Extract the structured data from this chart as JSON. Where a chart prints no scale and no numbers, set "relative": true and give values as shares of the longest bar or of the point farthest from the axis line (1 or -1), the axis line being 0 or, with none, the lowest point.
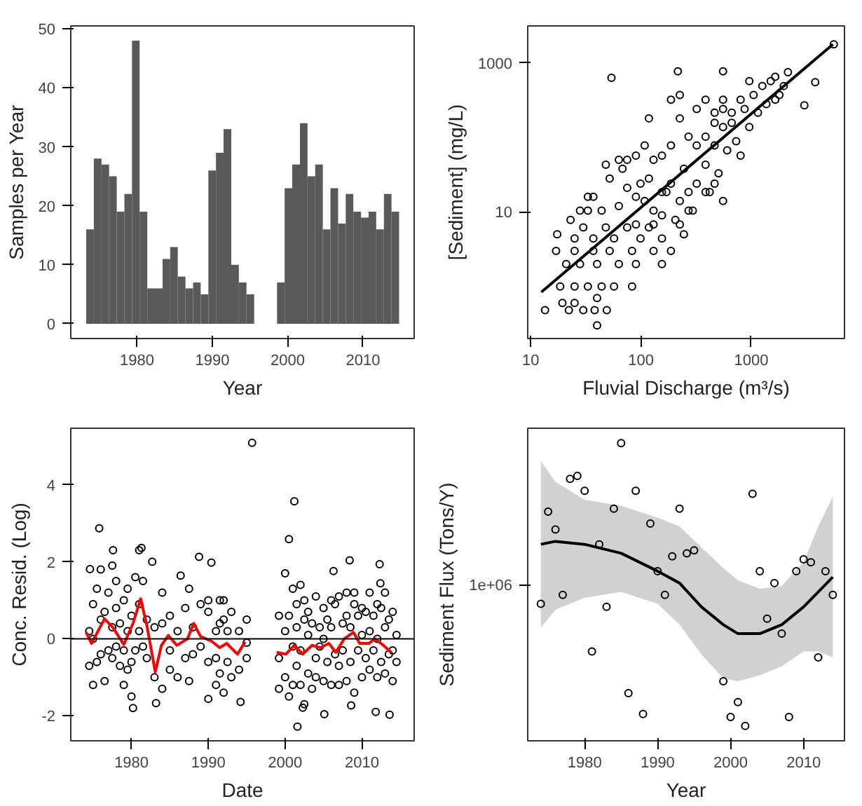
{
  "chart_data": [
    {
      "type": "histogram",
      "xlabel": "Year",
      "ylabel": "Samples per Year",
      "color": "#595959",
      "bins": [
        1973.25,
        1974.26,
        1975.28,
        1976.29,
        1977.3,
        1978.32,
        1979.33,
        1980.34,
        1981.36,
        1982.37,
        1983.39,
        1984.4,
        1985.41,
        1986.43,
        1987.44,
        1988.45,
        1989.47,
        1990.48,
        1991.49,
        1992.51,
        1993.52,
        1994.53,
        1995.55,
        1996.56,
        1997.57,
        1998.59,
        1999.6,
        2000.61,
        2001.63,
        2002.64,
        2003.66,
        2004.67,
        2005.68,
        2006.7,
        2007.71,
        2008.72,
        2009.74,
        2010.75,
        2011.76,
        2012.78,
        2013.79,
        2014.8
      ],
      "values": [
        16,
        28,
        27,
        25,
        19,
        22,
        48,
        19,
        6,
        6,
        11,
        13,
        8,
        6,
        7,
        5,
        26,
        29,
        33,
        10,
        7,
        5,
        0,
        0,
        0,
        7,
        23,
        27,
        34,
        25,
        27,
        16,
        23,
        17,
        22,
        19,
        18,
        19,
        16,
        22,
        19
      ],
      "xlim": [
        1971.2,
        2016.8
      ],
      "ylim": [
        -2.5,
        50.5
      ],
      "xticks": [
        1980,
        1990,
        2000,
        2010
      ],
      "yticks": [
        0,
        10,
        20,
        30,
        40,
        50
      ]
    },
    {
      "type": "scatter",
      "xlabel": "Fluvial Discharge (m³/s)",
      "ylabel": "[Sediment] (mg/L)",
      "log": "xy",
      "xlim": [
        9.4,
        7000
      ],
      "ylim": [
        0.2,
        3130
      ],
      "xticks": [
        10,
        100,
        1000
      ],
      "yticks": [
        10,
        1000
      ],
      "series": [
        {
          "color": "#000000",
          "marker": "circle",
          "x": [
            13.5,
            17.4,
            54,
            216,
            555,
            5600,
            3800,
            3030,
            40,
            19.4,
            22.2,
            30,
            38,
            49,
            25,
            40,
            18.5,
            25,
            33,
            44,
            57,
            83,
            21,
            28,
            40,
            63,
            90,
            155,
            17,
            25,
            37,
            52,
            83,
            130,
            187,
            25,
            37,
            57,
            99,
            155,
            245,
            30,
            48,
            75,
            118,
            33,
            44,
            63,
            75,
            90,
            108,
            118,
            130,
            155,
            170,
            187,
            205,
            225,
            245,
            270,
            295,
            320,
            385,
            420,
            465,
            505,
            555,
            605,
            665,
            730,
            800,
            870,
            960,
            1050,
            1150,
            1260,
            1370,
            1500,
            1650,
            1800,
            1970,
            2150,
            1650,
            960,
            800,
            665,
            555,
            465,
            385,
            320,
            270,
            225,
            187,
            155,
            130,
            108,
            90,
            75,
            63,
            52,
            48,
            37,
            28,
            23,
            33,
            187,
            225,
            118,
            320,
            385,
            465,
            555,
            90,
            130,
            225,
            270,
            385,
            465,
            555,
            155,
            99,
            68
          ],
          "values": [
            0.48,
            5.0,
            630,
            770,
            770,
            1770,
            550,
            270,
            0.3,
            0.6,
            0.48,
            0.48,
            0.48,
            0.48,
            0.6,
            0.7,
            1.0,
            1.0,
            1.0,
            1.0,
            1.0,
            1.0,
            2.0,
            2.0,
            2.0,
            2.0,
            2.0,
            2.0,
            3.0,
            3.0,
            3.0,
            3.0,
            3.0,
            3.0,
            3.0,
            4.4,
            4.4,
            4.4,
            4.4,
            4.4,
            5.0,
            6.2,
            6.2,
            6.2,
            6.2,
            16,
            10.4,
            12,
            21,
            16,
            14,
            28,
            10.4,
            9,
            18.5,
            24,
            7.8,
            14,
            38,
            18.5,
            10.4,
            24,
            43,
            18.5,
            78,
            33,
            138,
            67,
            215,
            89,
            57,
            240,
            138,
            370,
            215,
            490,
            280,
            570,
            650,
            370,
            490,
            750,
            320,
            570,
            320,
            157,
            240,
            157,
            102,
            78,
            102,
            180,
            78,
            57,
            50,
            78,
            57,
            50,
            50,
            28,
            43,
            16,
            10.4,
            7.8,
            10.4,
            320,
            370,
            180,
            240,
            320,
            215,
            320,
            6.8,
            6.8,
            6.8,
            10.4,
            18.5,
            24,
            14,
            18.5,
            24,
            38
          ]
        },
        {
          "type": "line",
          "color": "#000000",
          "marker": "none",
          "x": [
            12.5,
            5500
          ],
          "values": [
            0.84,
            1770
          ]
        }
      ]
    },
    {
      "type": "scatter",
      "xlabel": "Date",
      "ylabel": "Conc. Resid. (Log)",
      "xlim": [
        1972.1,
        2016.8
      ],
      "ylim": [
        -2.65,
        5.47
      ],
      "xticks": [
        1980,
        1990,
        2000,
        2010
      ],
      "yticks": [
        -2,
        0,
        2,
        4
      ],
      "ref_lines": [
        {
          "axis": "y",
          "value": 0,
          "color": "#000000"
        }
      ],
      "series": [
        {
          "color": "#000000",
          "marker": "circle",
          "x": [
            1995.7,
            2001.2,
            2000.5,
            1975.8,
            1977.6,
            1981.3,
            1982.7,
            1988.8,
            1990.4,
            1986.4,
            2006.3,
            2008.4,
            2012.3,
            2012.4,
            1974.6,
            1980.2,
            1983.2,
            1990,
            1994.2,
            2001.6,
            2005.1,
            2011.8,
            2013.6,
            2008.6,
            2002.3,
            1974.5,
            1974.5,
            1975,
            1975,
            1975,
            1975.5,
            1975.5,
            1976,
            1976,
            1976,
            1976.5,
            1976.5,
            1977,
            1977,
            1977.5,
            1977.5,
            1977.5,
            1978,
            1978,
            1978,
            1978.5,
            1978.5,
            1979,
            1979,
            1979,
            1979.5,
            1979.5,
            1979.5,
            1980,
            1980,
            1980,
            1980.5,
            1980.5,
            1981,
            1981,
            1981,
            1981.5,
            1981.5,
            1982,
            1982,
            1983,
            1983,
            1984,
            1984,
            1984,
            1985,
            1985,
            1985,
            1986,
            1986,
            1987,
            1987,
            1987.5,
            1987.5,
            1988,
            1988,
            1989,
            1989,
            1990,
            1990,
            1990,
            1991,
            1991,
            1991,
            1991.5,
            1991.5,
            1991.5,
            1992,
            1992,
            1992,
            1992.5,
            1992.5,
            1993,
            1993,
            1994,
            1994,
            1995,
            1995,
            1995,
            1999.2,
            1999.2,
            1999.2,
            2000,
            2000,
            2000,
            2000.5,
            2000.5,
            2001,
            2001,
            2001,
            2001.5,
            2001.5,
            2001.5,
            2002,
            2002,
            2002,
            2002.5,
            2002.5,
            2002.5,
            2003,
            2003,
            2003,
            2003.5,
            2003.5,
            2004,
            2004,
            2004,
            2004.5,
            2004.5,
            2005,
            2005,
            2005,
            2005.5,
            2005.5,
            2006,
            2006,
            2006,
            2006.5,
            2006.5,
            2007,
            2007,
            2007,
            2007.5,
            2007.5,
            2008,
            2008,
            2008,
            2008.5,
            2008.5,
            2009,
            2009,
            2009,
            2009.5,
            2009.5,
            2010,
            2010,
            2010,
            2010.5,
            2010.5,
            2011,
            2011,
            2011,
            2011.5,
            2011.5,
            2012,
            2012,
            2012,
            2012.5,
            2012.5,
            2013,
            2013,
            2013,
            2013.5,
            2013.5,
            2014,
            2014,
            2014,
            2014.5,
            2014.5
          ],
          "values": [
            5.09,
            3.57,
            2.59,
            2.87,
            2.3,
            2.36,
            2.0,
            2.13,
            1.98,
            1.64,
            1.76,
            2.04,
            1.94,
            1.44,
            1.81,
            -1.8,
            -1.67,
            -1.56,
            -1.64,
            -2.28,
            -1.96,
            -1.9,
            -1.97,
            -1.73,
            -1.79,
            0.2,
            -0.7,
            0.9,
            -1.2,
            0.0,
            1.3,
            -0.6,
            0.5,
            -0.4,
            1.8,
            -1.1,
            0.7,
            1.2,
            -0.3,
            1.9,
            0.3,
            -0.5,
            0.8,
            -0.2,
            1.5,
            -0.7,
            0.4,
            1.0,
            -1.2,
            -0.3,
            0.2,
            -0.8,
            1.3,
            0.6,
            -1.5,
            -0.6,
            1.6,
            -0.3,
            2.3,
            0.9,
            0.2,
            1.5,
            -0.2,
            -0.5,
            0.5,
            -1.0,
            0.3,
            0.4,
            -1.3,
            1.2,
            -0.8,
            0.6,
            -0.3,
            0.2,
            -1.0,
            0.8,
            -0.5,
            1.3,
            -1.1,
            0.3,
            -0.4,
            0.9,
            -0.2,
            0.7,
            -0.6,
            1.0,
            0.2,
            -1.2,
            -0.5,
            1.0,
            0.4,
            -0.9,
            0.5,
            -1.4,
            1.0,
            0.2,
            -0.6,
            0.7,
            -1.0,
            0.2,
            -0.8,
            0.5,
            -0.5,
            -0.1,
            0.6,
            -0.5,
            -1.3,
            0.2,
            -1.0,
            1.7,
            0.6,
            -1.5,
            1.3,
            -0.2,
            -1.2,
            0.9,
            -0.7,
            0.3,
            1.4,
            -1.2,
            -0.3,
            0.5,
            -1.7,
            1.0,
            0.1,
            -0.9,
            0.7,
            -1.3,
            0.4,
            1.1,
            -0.5,
            -1.0,
            0.3,
            -0.2,
            0.8,
            -1.1,
            0.0,
            -0.6,
            0.5,
            0.3,
            -1.2,
            1.0,
            -0.4,
            0.9,
            1.1,
            -0.7,
            -1.2,
            0.4,
            -0.3,
            1.2,
            -1.1,
            0.6,
            0.3,
            -0.6,
            0.9,
            -1.4,
            1.2,
            -0.3,
            0.6,
            0.8,
            -1.0,
            0.1,
            -0.5,
            0.7,
            1.2,
            -0.8,
            0.2,
            -0.3,
            0.6,
            0.9,
            -1.0,
            0.0,
            -0.6,
            0.8,
            0.3,
            -0.9,
            1.2,
            -0.4,
            0.5,
            0.7,
            -1.1,
            -0.3,
            0.1,
            -0.6
          ]
        },
        {
          "type": "line",
          "color": "#ff0000",
          "marker": "none",
          "x": [
            1974.1,
            1974.8,
            1976.5,
            1977.6,
            1979.0,
            1980.2,
            1981.2,
            1982.0,
            1983.1,
            1983.9,
            1984.8,
            1985.9,
            1987.3,
            1988.1,
            1989.0,
            1990.4,
            1991.5,
            1992.4,
            1993.8,
            1994.8,
            1997,
            1998.9,
            2000.1,
            2001.2,
            2002.3,
            2003.5,
            2004.6,
            2005.7,
            2006.6,
            2007.7,
            2008.9,
            2009.7,
            2010.9,
            2011.7,
            2012.8,
            2013.8
          ],
          "values": [
            0.17,
            -0.12,
            0.52,
            0.29,
            -0.15,
            0.4,
            1.04,
            0.35,
            -0.86,
            -0.17,
            0.09,
            -0.17,
            0.0,
            0.4,
            0.06,
            -0.06,
            -0.23,
            -0.12,
            -0.4,
            -0.08,
            null,
            -0.35,
            -0.4,
            -0.17,
            -0.4,
            -0.17,
            -0.23,
            -0.12,
            -0.35,
            0.0,
            0.17,
            -0.12,
            -0.12,
            0.0,
            -0.17,
            -0.35
          ]
        }
      ]
    },
    {
      "type": "scatter",
      "xlabel": "Year",
      "ylabel": "Sediment Flux (Tons/Y)",
      "relative": true,
      "xlim": [
        1972.2,
        2015.6
      ],
      "xticks": [
        1980,
        1990,
        2000,
        2010
      ],
      "annotations": [
        "1e+06"
      ],
      "series": [
        {
          "color": "#000000",
          "marker": "circle",
          "x": [
            1974,
            1975,
            1976,
            1977,
            1978,
            1979,
            1980,
            1981,
            1982,
            1983,
            1984,
            1985,
            1986,
            1987,
            1988,
            1989,
            1990,
            1991,
            1992,
            1993,
            1994,
            1995,
            1999,
            2000,
            2001,
            2002,
            2003,
            2004,
            2005,
            2006,
            2007,
            2008,
            2009,
            2010,
            2011,
            2012,
            2013,
            2014
          ],
          "values": [
            0.46,
            0.77,
            0.71,
            0.49,
            0.88,
            0.89,
            0.84,
            0.3,
            0.66,
            0.45,
            0.78,
            1,
            0.16,
            0.84,
            0.09,
            0.73,
            0.57,
            0.49,
            0.62,
            0.78,
            0.63,
            0.64,
            0.2,
            0.08,
            0.13,
            0.05,
            0.83,
            0.57,
            0.41,
            0.53,
            0.36,
            0.08,
            0.57,
            0.61,
            0.6,
            0.28,
            0.57,
            0.49
          ]
        },
        {
          "type": "line",
          "color": "#000000",
          "marker": "none",
          "x": [
            1974,
            1976,
            1980,
            1985,
            1990,
            1993,
            1996,
            1999,
            2001,
            2004,
            2007,
            2010,
            2012,
            2014
          ],
          "values": [
            0.66,
            0.67,
            0.66,
            0.63,
            0.57,
            0.53,
            0.45,
            0.39,
            0.36,
            0.36,
            0.39,
            0.45,
            0.5,
            0.55
          ],
          "upper": [
            0.94,
            0.87,
            0.81,
            0.79,
            0.75,
            0.72,
            0.65,
            0.58,
            0.54,
            0.51,
            0.52,
            0.6,
            0.72,
            0.82
          ],
          "lower": [
            0.38,
            0.44,
            0.48,
            0.5,
            0.46,
            0.39,
            0.29,
            0.21,
            0.2,
            0.22,
            0.25,
            0.3,
            0.3,
            0.28
          ]
        }
      ]
    }
  ]
}
